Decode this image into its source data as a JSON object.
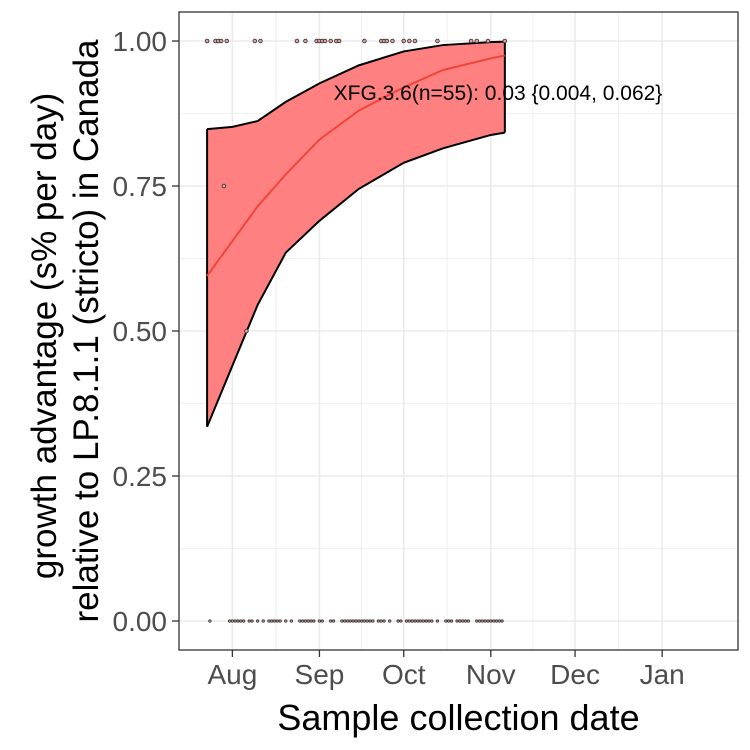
{
  "chart_data": {
    "type": "scatter",
    "xlabel": "Sample collection date",
    "ylabel_lines": [
      "growth advantage (s% per day)",
      "relative to LP.8.1.1 (stricto) in Canada"
    ],
    "annotation": "XFG.3.6(n=55): 0.03 {0.004, 0.062}",
    "xlim": [
      "2025-07-13",
      "2026-01-28"
    ],
    "ylim": [
      -0.05,
      1.05
    ],
    "x_ticks": [
      {
        "date": "2025-08-01",
        "label": "Aug"
      },
      {
        "date": "2025-09-01",
        "label": "Sep"
      },
      {
        "date": "2025-10-01",
        "label": "Oct"
      },
      {
        "date": "2025-11-01",
        "label": "Nov"
      },
      {
        "date": "2025-12-01",
        "label": "Dec"
      },
      {
        "date": "2026-01-01",
        "label": "Jan"
      }
    ],
    "y_ticks": [
      {
        "value": 0,
        "label": "0.00"
      },
      {
        "value": 0.25,
        "label": "0.25"
      },
      {
        "value": 0.5,
        "label": "0.50"
      },
      {
        "value": 0.75,
        "label": "0.75"
      },
      {
        "value": 1,
        "label": "1.00"
      }
    ],
    "grid": true,
    "colors": {
      "ribbon": "#ff8080",
      "fit_line": "#f0453a",
      "band_edge": "#000000",
      "points_fill": "#e8a0a0",
      "points_stroke": "#3a3a3a",
      "panel_border": "#333333",
      "grid": "#ebebeb"
    },
    "fit_line": [
      {
        "x": "2025-07-23",
        "y": 0.595
      },
      {
        "x": "2025-08-01",
        "y": 0.655
      },
      {
        "x": "2025-08-10",
        "y": 0.715
      },
      {
        "x": "2025-08-20",
        "y": 0.77
      },
      {
        "x": "2025-09-01",
        "y": 0.83
      },
      {
        "x": "2025-09-15",
        "y": 0.88
      },
      {
        "x": "2025-10-01",
        "y": 0.92
      },
      {
        "x": "2025-10-15",
        "y": 0.95
      },
      {
        "x": "2025-11-01",
        "y": 0.97
      },
      {
        "x": "2025-11-06",
        "y": 0.975
      }
    ],
    "ribbon_upper": [
      {
        "x": "2025-07-23",
        "y": 0.848
      },
      {
        "x": "2025-08-01",
        "y": 0.852
      },
      {
        "x": "2025-08-10",
        "y": 0.862
      },
      {
        "x": "2025-08-20",
        "y": 0.895
      },
      {
        "x": "2025-09-01",
        "y": 0.927
      },
      {
        "x": "2025-09-15",
        "y": 0.958
      },
      {
        "x": "2025-10-01",
        "y": 0.982
      },
      {
        "x": "2025-10-15",
        "y": 0.993
      },
      {
        "x": "2025-11-01",
        "y": 0.998
      },
      {
        "x": "2025-11-06",
        "y": 0.999
      }
    ],
    "ribbon_lower": [
      {
        "x": "2025-07-23",
        "y": 0.335
      },
      {
        "x": "2025-08-01",
        "y": 0.44
      },
      {
        "x": "2025-08-10",
        "y": 0.545
      },
      {
        "x": "2025-08-20",
        "y": 0.635
      },
      {
        "x": "2025-09-01",
        "y": 0.69
      },
      {
        "x": "2025-09-15",
        "y": 0.745
      },
      {
        "x": "2025-10-01",
        "y": 0.79
      },
      {
        "x": "2025-10-15",
        "y": 0.815
      },
      {
        "x": "2025-11-01",
        "y": 0.838
      },
      {
        "x": "2025-11-06",
        "y": 0.842
      }
    ],
    "points": [
      {
        "x": "2025-07-23",
        "y": 1
      },
      {
        "x": "2025-07-26",
        "y": 1
      },
      {
        "x": "2025-07-27",
        "y": 1
      },
      {
        "x": "2025-07-28",
        "y": 1
      },
      {
        "x": "2025-07-30",
        "y": 1
      },
      {
        "x": "2025-08-09",
        "y": 1
      },
      {
        "x": "2025-08-11",
        "y": 1
      },
      {
        "x": "2025-08-24",
        "y": 1
      },
      {
        "x": "2025-08-27",
        "y": 1
      },
      {
        "x": "2025-08-31",
        "y": 1
      },
      {
        "x": "2025-09-01",
        "y": 1
      },
      {
        "x": "2025-09-02",
        "y": 1
      },
      {
        "x": "2025-09-03",
        "y": 1
      },
      {
        "x": "2025-09-05",
        "y": 1
      },
      {
        "x": "2025-09-07",
        "y": 1
      },
      {
        "x": "2025-09-08",
        "y": 1
      },
      {
        "x": "2025-09-17",
        "y": 1
      },
      {
        "x": "2025-09-23",
        "y": 1
      },
      {
        "x": "2025-09-24",
        "y": 1
      },
      {
        "x": "2025-09-25",
        "y": 1
      },
      {
        "x": "2025-09-27",
        "y": 1
      },
      {
        "x": "2025-10-01",
        "y": 1
      },
      {
        "x": "2025-10-03",
        "y": 1
      },
      {
        "x": "2025-10-05",
        "y": 1
      },
      {
        "x": "2025-10-13",
        "y": 1
      },
      {
        "x": "2025-10-25",
        "y": 1
      },
      {
        "x": "2025-10-27",
        "y": 1
      },
      {
        "x": "2025-10-31",
        "y": 1
      },
      {
        "x": "2025-11-06",
        "y": 1
      },
      {
        "x": "2025-07-29",
        "y": 0.75
      },
      {
        "x": "2025-08-06",
        "y": 0.5
      },
      {
        "x": "2025-07-24",
        "y": 0
      },
      {
        "x": "2025-07-31",
        "y": 0
      },
      {
        "x": "2025-08-01",
        "y": 0
      },
      {
        "x": "2025-08-02",
        "y": 0
      },
      {
        "x": "2025-08-03",
        "y": 0
      },
      {
        "x": "2025-08-04",
        "y": 0
      },
      {
        "x": "2025-08-05",
        "y": 0
      },
      {
        "x": "2025-08-07",
        "y": 0
      },
      {
        "x": "2025-08-08",
        "y": 0
      },
      {
        "x": "2025-08-10",
        "y": 0
      },
      {
        "x": "2025-08-12",
        "y": 0
      },
      {
        "x": "2025-08-14",
        "y": 0
      },
      {
        "x": "2025-08-15",
        "y": 0
      },
      {
        "x": "2025-08-16",
        "y": 0
      },
      {
        "x": "2025-08-17",
        "y": 0
      },
      {
        "x": "2025-08-18",
        "y": 0
      },
      {
        "x": "2025-08-20",
        "y": 0
      },
      {
        "x": "2025-08-22",
        "y": 0
      },
      {
        "x": "2025-08-25",
        "y": 0
      },
      {
        "x": "2025-08-26",
        "y": 0
      },
      {
        "x": "2025-08-27",
        "y": 0
      },
      {
        "x": "2025-08-28",
        "y": 0
      },
      {
        "x": "2025-08-29",
        "y": 0
      },
      {
        "x": "2025-08-30",
        "y": 0
      },
      {
        "x": "2025-09-01",
        "y": 0
      },
      {
        "x": "2025-09-02",
        "y": 0
      },
      {
        "x": "2025-09-05",
        "y": 0
      },
      {
        "x": "2025-09-06",
        "y": 0
      },
      {
        "x": "2025-09-09",
        "y": 0
      },
      {
        "x": "2025-09-10",
        "y": 0
      },
      {
        "x": "2025-09-11",
        "y": 0
      },
      {
        "x": "2025-09-12",
        "y": 0
      },
      {
        "x": "2025-09-13",
        "y": 0
      },
      {
        "x": "2025-09-14",
        "y": 0
      },
      {
        "x": "2025-09-15",
        "y": 0
      },
      {
        "x": "2025-09-16",
        "y": 0
      },
      {
        "x": "2025-09-17",
        "y": 0
      },
      {
        "x": "2025-09-18",
        "y": 0
      },
      {
        "x": "2025-09-19",
        "y": 0
      },
      {
        "x": "2025-09-20",
        "y": 0
      },
      {
        "x": "2025-09-22",
        "y": 0
      },
      {
        "x": "2025-09-23",
        "y": 0
      },
      {
        "x": "2025-09-24",
        "y": 0
      },
      {
        "x": "2025-09-26",
        "y": 0
      },
      {
        "x": "2025-09-29",
        "y": 0
      },
      {
        "x": "2025-09-30",
        "y": 0
      },
      {
        "x": "2025-10-02",
        "y": 0
      },
      {
        "x": "2025-10-03",
        "y": 0
      },
      {
        "x": "2025-10-04",
        "y": 0
      },
      {
        "x": "2025-10-05",
        "y": 0
      },
      {
        "x": "2025-10-06",
        "y": 0
      },
      {
        "x": "2025-10-07",
        "y": 0
      },
      {
        "x": "2025-10-08",
        "y": 0
      },
      {
        "x": "2025-10-09",
        "y": 0
      },
      {
        "x": "2025-10-10",
        "y": 0
      },
      {
        "x": "2025-10-11",
        "y": 0
      },
      {
        "x": "2025-10-13",
        "y": 0
      },
      {
        "x": "2025-10-16",
        "y": 0
      },
      {
        "x": "2025-10-17",
        "y": 0
      },
      {
        "x": "2025-10-18",
        "y": 0
      },
      {
        "x": "2025-10-20",
        "y": 0
      },
      {
        "x": "2025-10-21",
        "y": 0
      },
      {
        "x": "2025-10-22",
        "y": 0
      },
      {
        "x": "2025-10-23",
        "y": 0
      },
      {
        "x": "2025-10-24",
        "y": 0
      },
      {
        "x": "2025-10-27",
        "y": 0
      },
      {
        "x": "2025-10-28",
        "y": 0
      },
      {
        "x": "2025-10-29",
        "y": 0
      },
      {
        "x": "2025-10-30",
        "y": 0
      },
      {
        "x": "2025-10-31",
        "y": 0
      },
      {
        "x": "2025-11-01",
        "y": 0
      },
      {
        "x": "2025-11-02",
        "y": 0
      },
      {
        "x": "2025-11-03",
        "y": 0
      },
      {
        "x": "2025-11-04",
        "y": 0
      },
      {
        "x": "2025-11-05",
        "y": 0
      }
    ]
  }
}
